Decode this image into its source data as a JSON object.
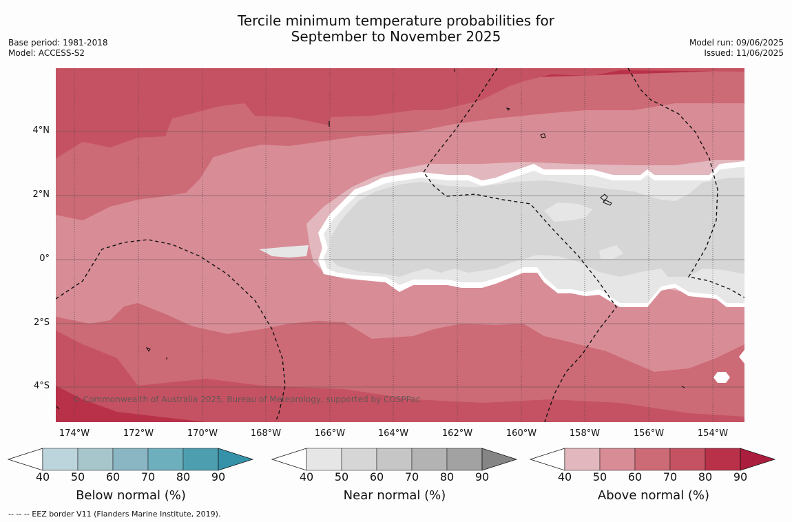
{
  "title_line1": "Tercile minimum temperature probabilities for",
  "title_line2": "September to November 2025",
  "meta_left": {
    "base_period": "Base period: 1981-2018",
    "model": "Model: ACCESS-S2"
  },
  "meta_right": {
    "model_run": "Model run: 09/06/2025",
    "issued": "Issued: 11/06/2025"
  },
  "map": {
    "lat_labels": [
      "4°N",
      "2°N",
      "0°",
      "2°S",
      "4°S"
    ],
    "lon_labels": [
      "174°W",
      "172°W",
      "170°W",
      "168°W",
      "166°W",
      "164°W",
      "162°W",
      "160°W",
      "158°W",
      "156°W",
      "154°W"
    ],
    "credit": "© Commonwealth of Australia 2025, Bureau of Meteorology, supported by COSPPac"
  },
  "colorbars": [
    {
      "title": "Below normal (%)",
      "ticks": [
        "40",
        "50",
        "60",
        "70",
        "80",
        "90"
      ],
      "colors": [
        "#ffffff",
        "#bcd4db",
        "#a6c6cc",
        "#8ab6c3",
        "#6eafbe",
        "#4d9fb0",
        "#3592a8"
      ]
    },
    {
      "title": "Near normal (%)",
      "ticks": [
        "40",
        "50",
        "60",
        "70",
        "80",
        "90"
      ],
      "colors": [
        "#ffffff",
        "#e6e6e6",
        "#d6d6d6",
        "#c6c6c6",
        "#b3b3b3",
        "#a2a2a2",
        "#858585"
      ]
    },
    {
      "title": "Above normal (%)",
      "ticks": [
        "40",
        "50",
        "60",
        "70",
        "80",
        "90"
      ],
      "colors": [
        "#ffffff",
        "#e2b7bd",
        "#d88c96",
        "#cc6a75",
        "#c55262",
        "#b93149",
        "#ac1e3d"
      ]
    }
  ],
  "footnote": "--  --  -- EEZ border V11 (Flanders Marine Institute, 2019)."
}
